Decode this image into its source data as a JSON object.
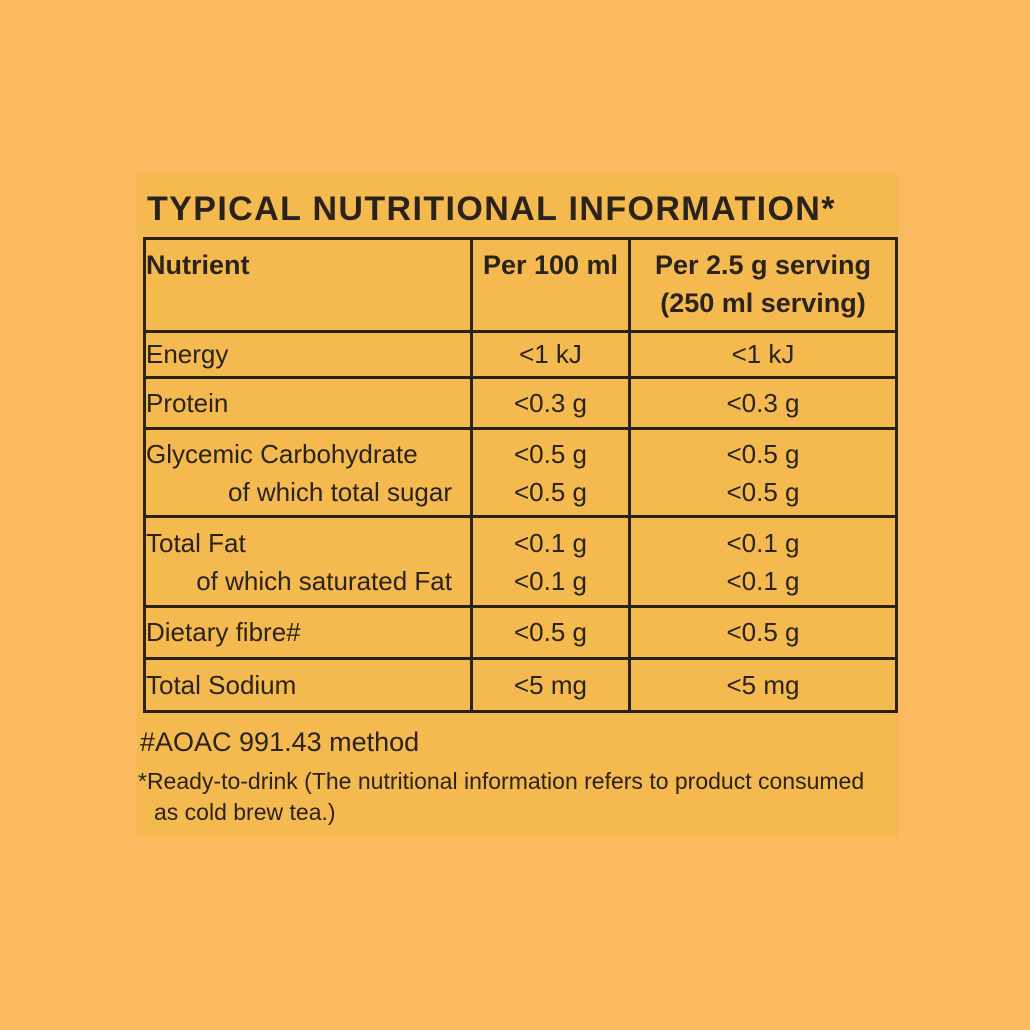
{
  "title": "TYPICAL NUTRITIONAL INFORMATION*",
  "colors": {
    "page_background": "#FCBA60",
    "panel_background": "#F5BA4F",
    "ink": "#2A231B"
  },
  "table": {
    "header": {
      "nutrient": "Nutrient",
      "per_100ml": "Per 100 ml",
      "per_serving_line1": "Per 2.5 g serving",
      "per_serving_line2": "(250 ml serving)"
    },
    "rows": [
      {
        "label": "Energy",
        "per_100ml": "<1 kJ",
        "per_serving": "<1 kJ"
      },
      {
        "label": "Protein",
        "per_100ml": "<0.3 g",
        "per_serving": "<0.3 g"
      },
      {
        "label": "Glycemic Carbohydrate",
        "sub_label": "of which total sugar",
        "per_100ml": "<0.5 g",
        "sub_per_100ml": "<0.5 g",
        "per_serving": "<0.5 g",
        "sub_per_serving": "<0.5 g"
      },
      {
        "label": "Total Fat",
        "sub_label": "of which saturated Fat",
        "per_100ml": "<0.1 g",
        "sub_per_100ml": "<0.1 g",
        "per_serving": "<0.1 g",
        "sub_per_serving": "<0.1 g"
      },
      {
        "label": "Dietary fibre#",
        "per_100ml": "<0.5 g",
        "per_serving": "<0.5 g"
      },
      {
        "label": "Total Sodium",
        "per_100ml": "<5 mg",
        "per_serving": "<5 mg"
      }
    ]
  },
  "footnotes": {
    "method": "#AOAC 991.43 method",
    "ready_line1": "*Ready-to-drink (The nutritional information refers to product consumed",
    "ready_line2": "as cold brew tea.)"
  }
}
